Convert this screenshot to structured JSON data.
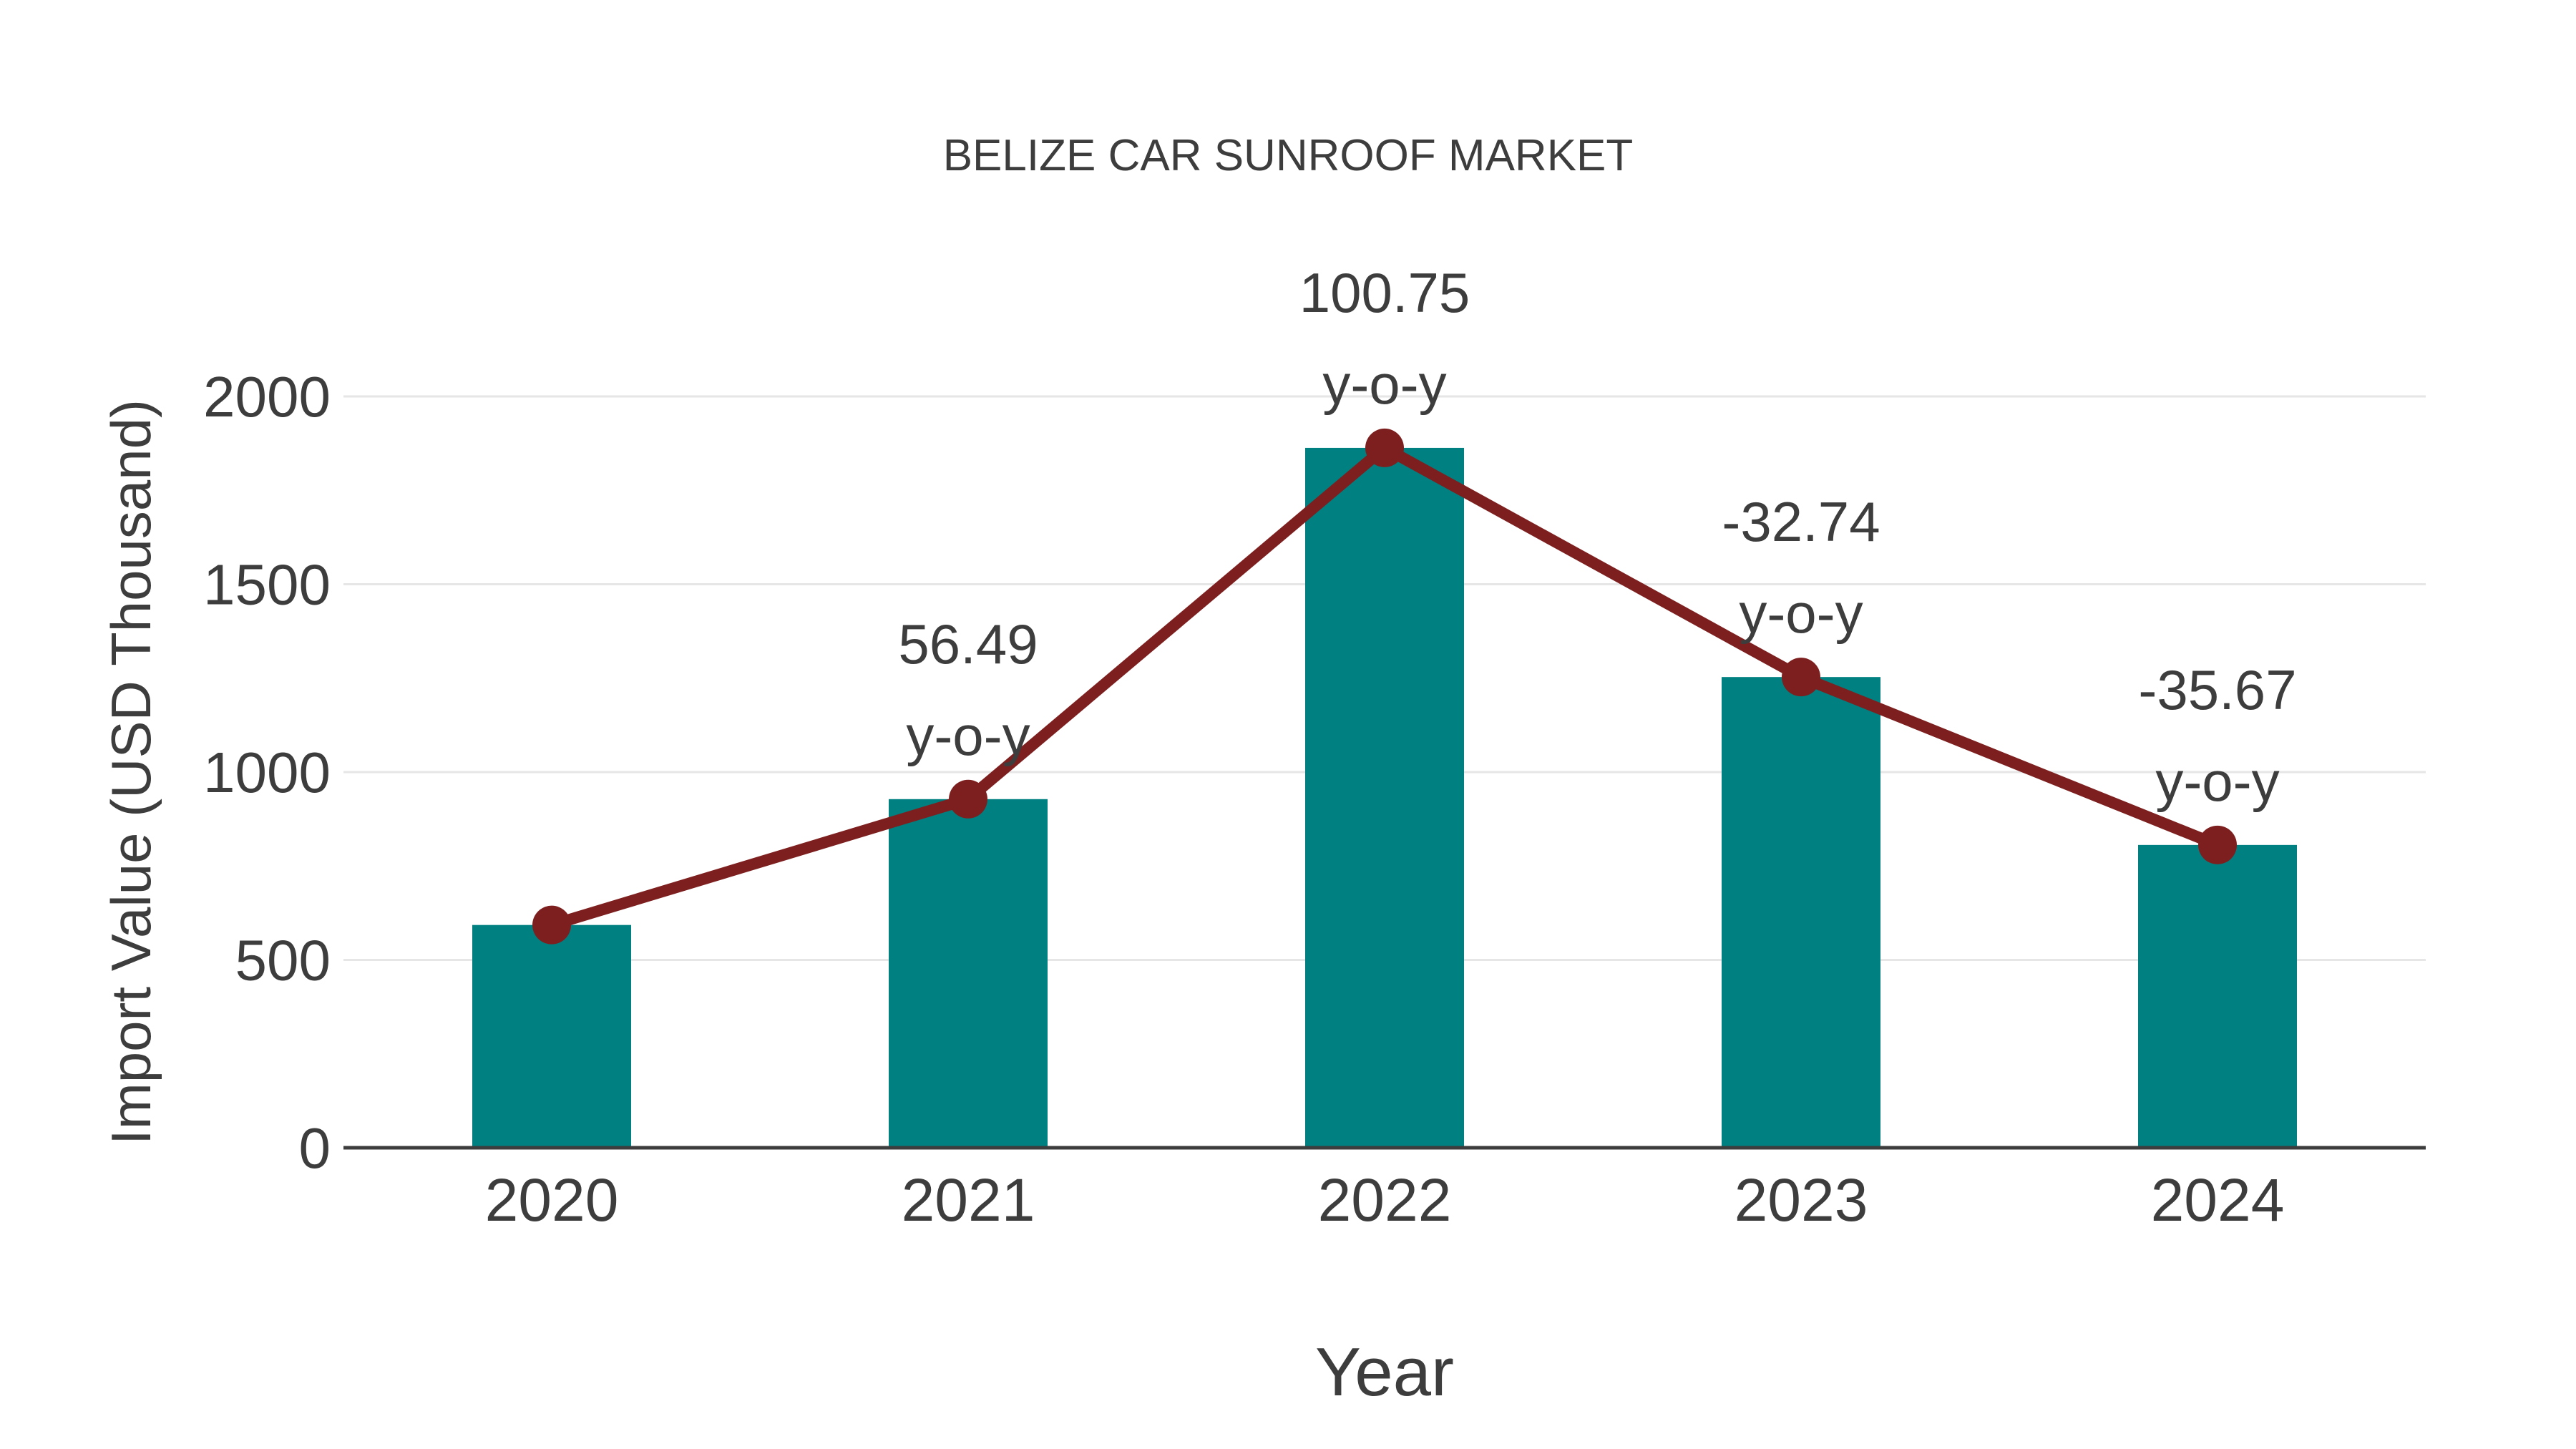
{
  "chart_data": {
    "type": "bar",
    "title": "BELIZE CAR SUNROOF MARKET",
    "xlabel": "Year",
    "ylabel": "Import Value (USD Thousand)",
    "categories": [
      "2020",
      "2021",
      "2022",
      "2023",
      "2024"
    ],
    "series": [
      {
        "name": "Import Value (USD Thousand)",
        "type": "bar",
        "values": [
          593,
          928,
          1863,
          1253,
          806
        ],
        "color": "#008080"
      },
      {
        "name": "y-o-y change line",
        "type": "line",
        "values": [
          593,
          928,
          1863,
          1253,
          806
        ],
        "color": "#7e1f1f"
      }
    ],
    "annotations": [
      {
        "category": "2021",
        "value_label": "56.49",
        "suffix_label": "y-o-y"
      },
      {
        "category": "2022",
        "value_label": "100.75",
        "suffix_label": "y-o-y"
      },
      {
        "category": "2023",
        "value_label": "-32.74",
        "suffix_label": "y-o-y"
      },
      {
        "category": "2024",
        "value_label": "-35.67",
        "suffix_label": "y-o-y"
      }
    ],
    "yticks": [
      "0",
      "500",
      "1000",
      "1500",
      "2000"
    ],
    "ytick_values": [
      0,
      500,
      1000,
      1500,
      2000
    ],
    "ylim": [
      0,
      2000
    ],
    "grid": "horizontal",
    "legend": false,
    "colors": {
      "bar": "#008080",
      "line": "#7e1f1f",
      "marker": "#7e1f1f",
      "text": "#3d3d3d",
      "gridline": "#e6e6e6",
      "axis_line": "#3d3d3d",
      "background": "#ffffff"
    }
  }
}
